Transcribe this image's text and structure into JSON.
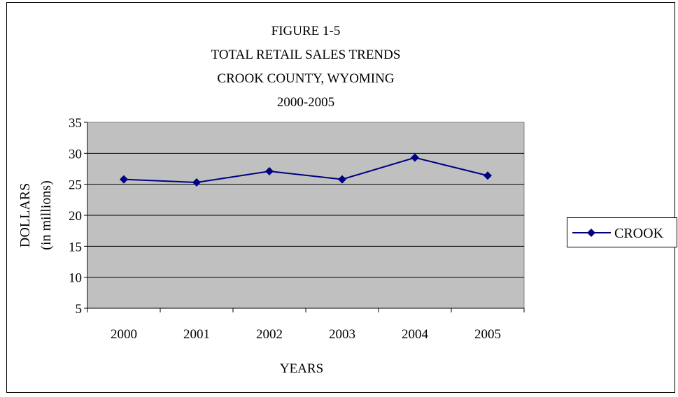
{
  "chart_data": {
    "type": "line",
    "title_lines": [
      "FIGURE 1-5",
      "TOTAL RETAIL SALES TRENDS",
      "CROOK COUNTY, WYOMING",
      "2000-2005"
    ],
    "xlabel": "YEARS",
    "ylabel_lines": [
      "DOLLARS",
      "(in millions)"
    ],
    "categories": [
      "2000",
      "2001",
      "2002",
      "2003",
      "2004",
      "2005"
    ],
    "ylim": [
      5,
      35
    ],
    "yticks": [
      5,
      10,
      15,
      20,
      25,
      30,
      35
    ],
    "grid": true,
    "legend_position": "right",
    "plot_background": "#c0c0c0",
    "series": [
      {
        "name": "CROOK",
        "color": "#000080",
        "marker": "diamond",
        "values": [
          25.8,
          25.3,
          27.1,
          25.8,
          29.3,
          26.4
        ]
      }
    ]
  }
}
